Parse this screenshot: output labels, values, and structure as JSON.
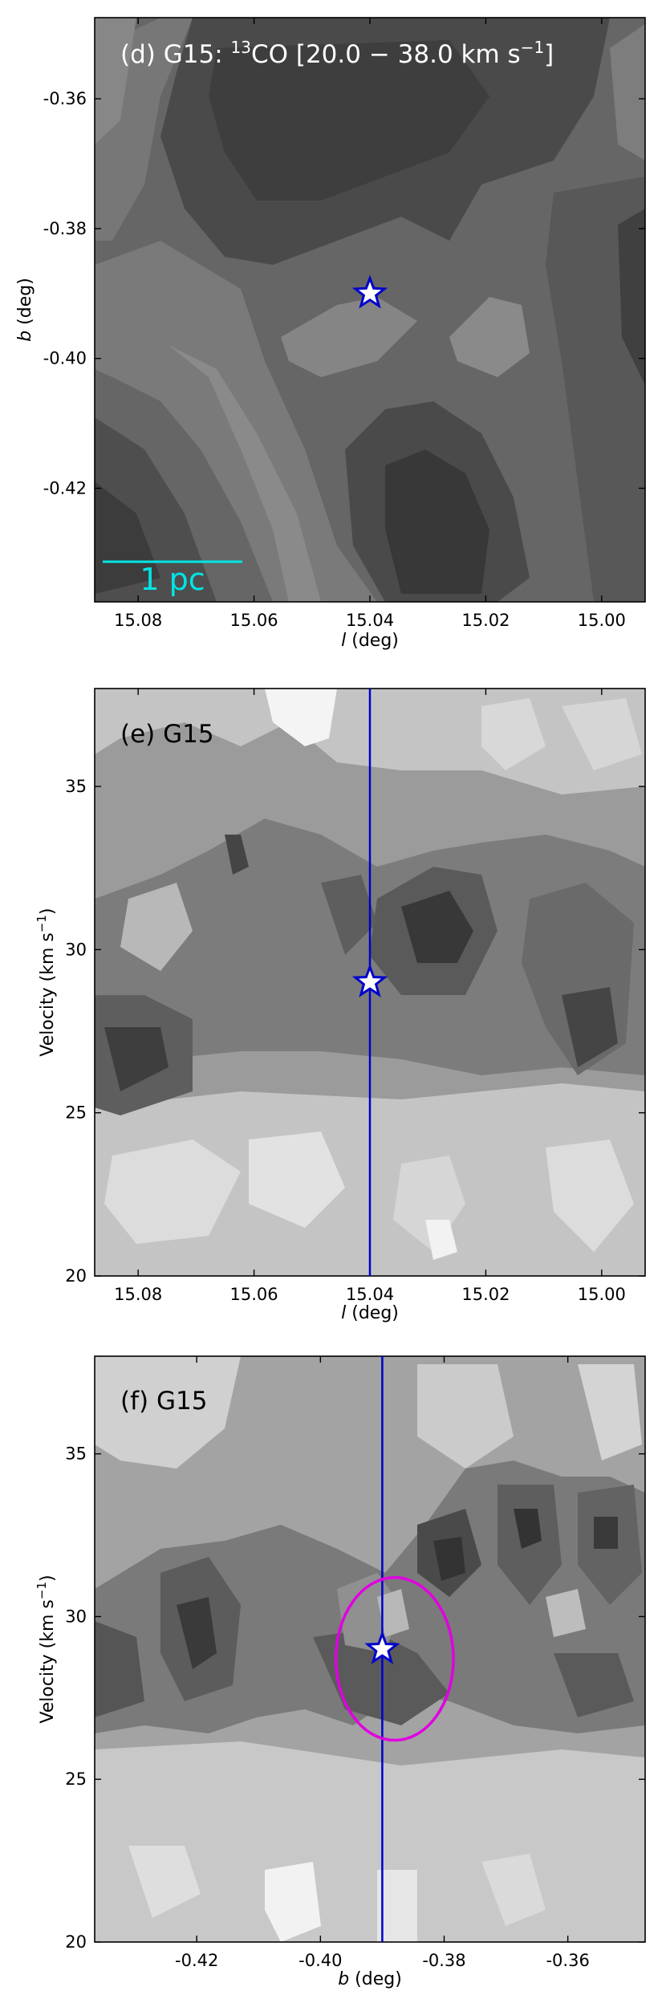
{
  "panels": {
    "d": {
      "title_prefix": "(d) G15: ",
      "title_iso": "13",
      "title_mol": "CO [20.0 − 38.0 km s",
      "title_exp": "−1",
      "title_end": "]",
      "xlabel_var": "l",
      "xlabel_unit": " (deg)",
      "ylabel_var": "b",
      "ylabel_unit": " (deg)",
      "scalebar_label": "1 pc"
    },
    "e": {
      "title": "(e) G15",
      "xlabel_var": "l",
      "xlabel_unit": " (deg)",
      "ylabel_main": "Velocity (km s",
      "ylabel_exp": "−1",
      "ylabel_end": ")"
    },
    "f": {
      "title": "(f) G15",
      "xlabel_var": "b",
      "xlabel_unit": " (deg)",
      "ylabel_main": "Velocity (km s",
      "ylabel_exp": "−1",
      "ylabel_end": ")"
    }
  },
  "chart_data": [
    {
      "panel": "d",
      "type": "heatmap",
      "description_axes": "galactic longitude vs latitude, integrated intensity contours (grayscale)",
      "xlim": [
        15.0875,
        14.9925
      ],
      "ylim": [
        -0.4375,
        -0.3475
      ],
      "xticks": [
        15.08,
        15.06,
        15.04,
        15.02,
        15.0
      ],
      "xtick_labels": [
        "15.08",
        "15.06",
        "15.04",
        "15.02",
        "15.00"
      ],
      "yticks": [
        -0.36,
        -0.38,
        -0.4,
        -0.42
      ],
      "ytick_labels": [
        "-0.36",
        "-0.38",
        "-0.40",
        "-0.42"
      ],
      "star": {
        "x": 15.04,
        "y": -0.39
      },
      "colors": {
        "star_fill": "#ffffff",
        "star_edge": "#0000cc",
        "scalebar": "#00e5e5"
      }
    },
    {
      "panel": "e",
      "type": "heatmap",
      "description_axes": "longitude-velocity diagram (grayscale contours)",
      "xlim": [
        15.0875,
        14.9925
      ],
      "ylim": [
        20,
        38
      ],
      "xticks": [
        15.08,
        15.06,
        15.04,
        15.02,
        15.0
      ],
      "xtick_labels": [
        "15.08",
        "15.06",
        "15.04",
        "15.02",
        "15.00"
      ],
      "yticks": [
        20,
        25,
        30,
        35
      ],
      "ytick_labels": [
        "20",
        "25",
        "30",
        "35"
      ],
      "vline_x": 15.04,
      "star": {
        "x": 15.04,
        "y": 29
      },
      "colors": {
        "line": "#0000cc",
        "star_fill": "#ffffff"
      }
    },
    {
      "panel": "f",
      "type": "heatmap",
      "description_axes": "latitude-velocity diagram (grayscale contours)",
      "xlim": [
        -0.4365,
        -0.3475
      ],
      "ylim": [
        20,
        38
      ],
      "xticks": [
        -0.42,
        -0.4,
        -0.38,
        -0.36
      ],
      "xtick_labels": [
        "-0.42",
        "-0.40",
        "-0.38",
        "-0.36"
      ],
      "yticks": [
        20,
        25,
        30,
        35
      ],
      "ytick_labels": [
        "20",
        "25",
        "30",
        "35"
      ],
      "vline_x": -0.39,
      "star": {
        "x": -0.39,
        "y": 29
      },
      "ellipse": {
        "cx": -0.388,
        "cy": 28.7,
        "rx": 0.0095,
        "ry": 2.5
      },
      "colors": {
        "line": "#0000cc",
        "ellipse": "#e000e0",
        "star_fill": "#ffffff"
      }
    }
  ]
}
